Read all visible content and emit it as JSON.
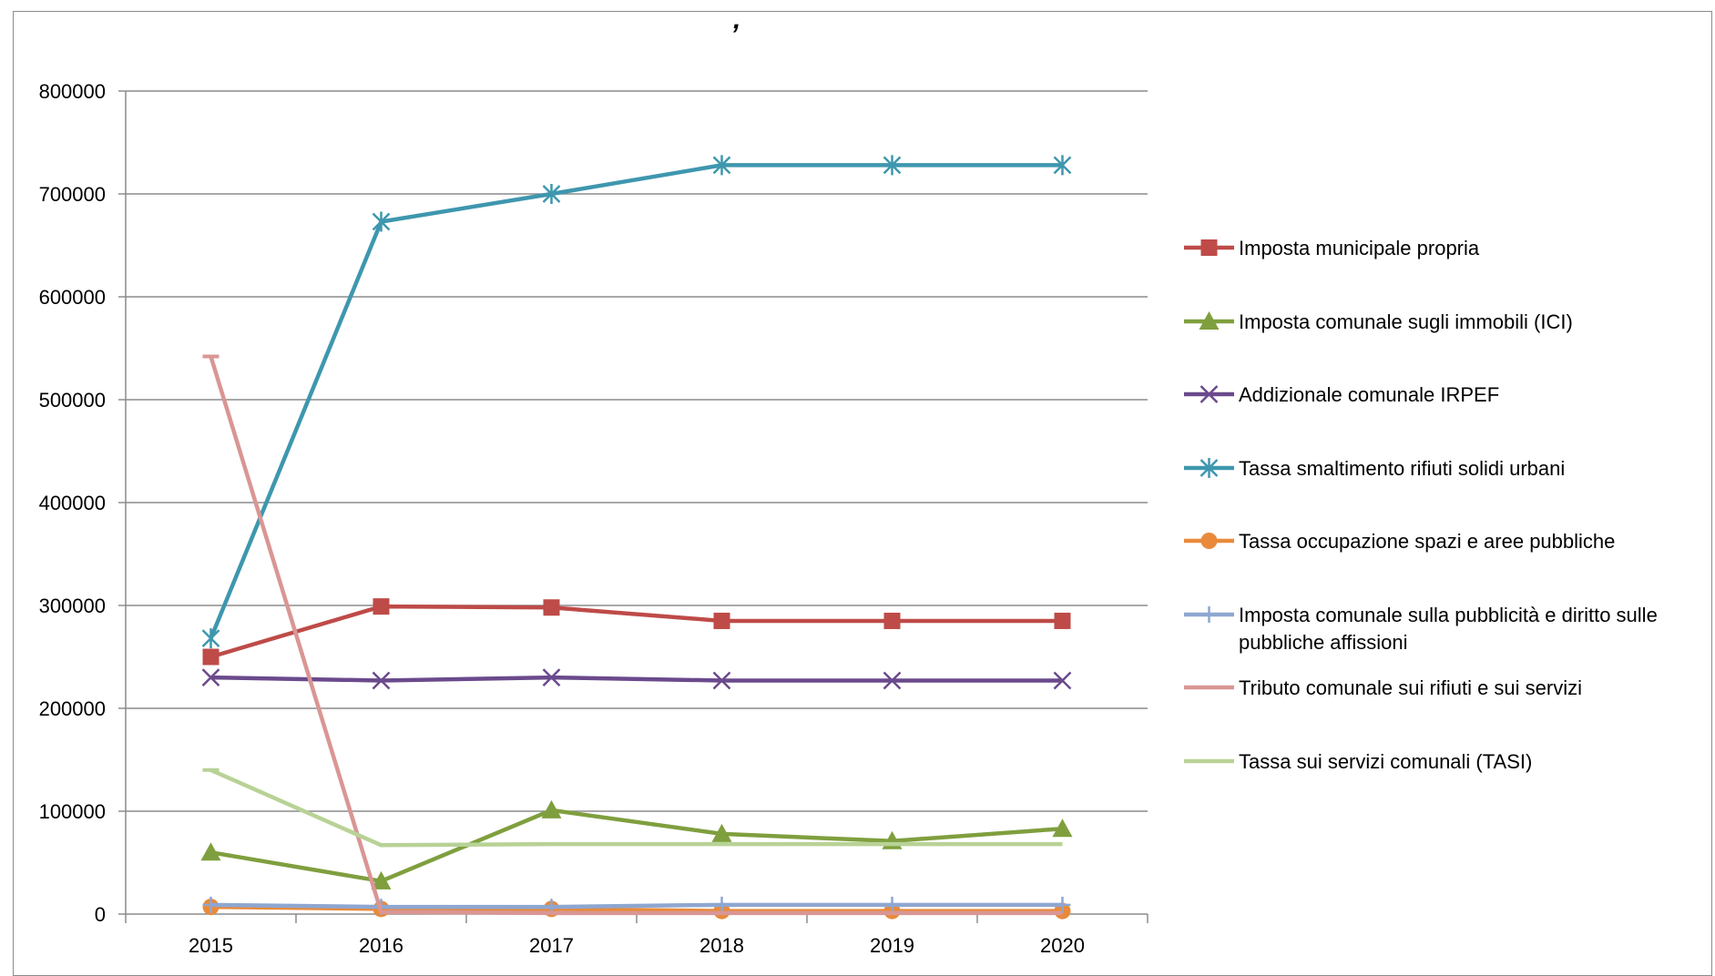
{
  "chart_data": {
    "type": "line",
    "title": "",
    "xlabel": "",
    "ylabel": "",
    "categories": [
      "2015",
      "2016",
      "2017",
      "2018",
      "2019",
      "2020"
    ],
    "ylim": [
      0,
      800000
    ],
    "yticks": [
      "0",
      "100000",
      "200000",
      "300000",
      "400000",
      "500000",
      "600000",
      "700000",
      "800000"
    ],
    "grid": "horizontal",
    "legend_position": "right",
    "series": [
      {
        "name": "Imposta municipale propria",
        "color": "#be4b48",
        "marker": "square",
        "values": [
          250000,
          299000,
          298000,
          285000,
          285000,
          285000
        ]
      },
      {
        "name": "Imposta comunale sugli immobili (ICI)",
        "color": "#7f9f3e",
        "marker": "triangle",
        "values": [
          60000,
          32000,
          101000,
          78000,
          71000,
          83000
        ]
      },
      {
        "name": "Addizionale comunale IRPEF",
        "color": "#6a4a8c",
        "marker": "x",
        "values": [
          230000,
          227000,
          230000,
          227000,
          227000,
          227000
        ]
      },
      {
        "name": "Tassa smaltimento rifiuti solidi urbani",
        "color": "#3e97ae",
        "marker": "star",
        "values": [
          268000,
          673000,
          700000,
          728000,
          728000,
          728000
        ]
      },
      {
        "name": "Tassa occupazione spazi e aree pubbliche",
        "color": "#e98a3b",
        "marker": "circle",
        "values": [
          7000,
          5000,
          5000,
          3000,
          3000,
          3000
        ]
      },
      {
        "name": "Imposta comunale sulla pubblicità e diritto sulle pubbliche affissioni",
        "legend_lines": [
          "Imposta comunale sulla pubblicità e diritto sulle",
          "pubbliche affissioni"
        ],
        "color": "#8ea7d1",
        "marker": "plus",
        "values": [
          9000,
          7000,
          7000,
          9000,
          9000,
          9000
        ]
      },
      {
        "name": "Tributo comunale sui rifiuti e sui servizi",
        "color": "#d99694",
        "marker": "dash",
        "values": [
          542000,
          2000,
          1000,
          1000,
          1000,
          1000
        ]
      },
      {
        "name": "Tassa sui servizi comunali (TASI)",
        "color": "#b8d296",
        "marker": "dash",
        "values": [
          140000,
          67000,
          68000,
          68000,
          68000,
          68000
        ]
      }
    ]
  }
}
